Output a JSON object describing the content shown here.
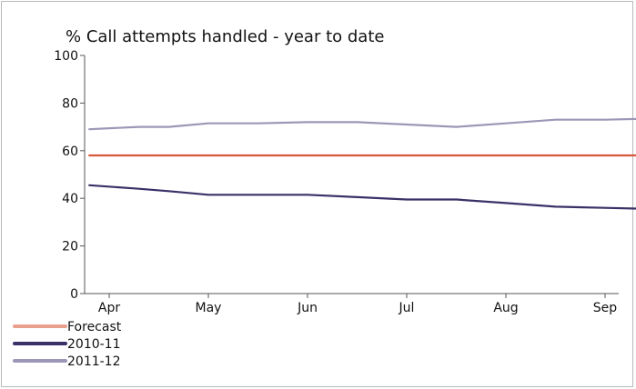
{
  "chart_data": {
    "type": "line",
    "title": "% Call attempts handled - year to date",
    "xlabel": "",
    "ylabel": "",
    "ylim": [
      0,
      100
    ],
    "yticks": [
      0,
      20,
      40,
      60,
      80,
      100
    ],
    "xlim": [
      0,
      5.5
    ],
    "categories": [
      "Apr",
      "May",
      "Jun",
      "Jul",
      "Aug",
      "Sep"
    ],
    "category_x": [
      0,
      1,
      2,
      3,
      4,
      5
    ],
    "grid": false,
    "legend_position": "bottom-left",
    "series": [
      {
        "name": "Forecast",
        "color": "#d9573a",
        "legend_color": "#e8a08c",
        "x": [
          -0.2,
          5.5
        ],
        "y": [
          58,
          58
        ]
      },
      {
        "name": "2010-11",
        "color": "#3c3068",
        "legend_color": "#3c3068",
        "x": [
          -0.2,
          0.3,
          0.6,
          1,
          1.5,
          2,
          2.5,
          3,
          3.5,
          4,
          4.5,
          5,
          5.5
        ],
        "y": [
          45.5,
          44,
          43,
          41.5,
          41.5,
          41.5,
          40.5,
          39.5,
          39.5,
          38,
          36.5,
          36,
          35.5
        ]
      },
      {
        "name": "2011-12",
        "color": "#9d97b7",
        "legend_color": "#9d97b7",
        "x": [
          -0.2,
          0.3,
          0.6,
          1,
          1.5,
          2,
          2.5,
          3,
          3.5,
          4,
          4.5,
          5,
          5.5
        ],
        "y": [
          69,
          70,
          70,
          71.5,
          71.5,
          72,
          72,
          71,
          70,
          71.5,
          73,
          73,
          73.5
        ]
      }
    ]
  }
}
